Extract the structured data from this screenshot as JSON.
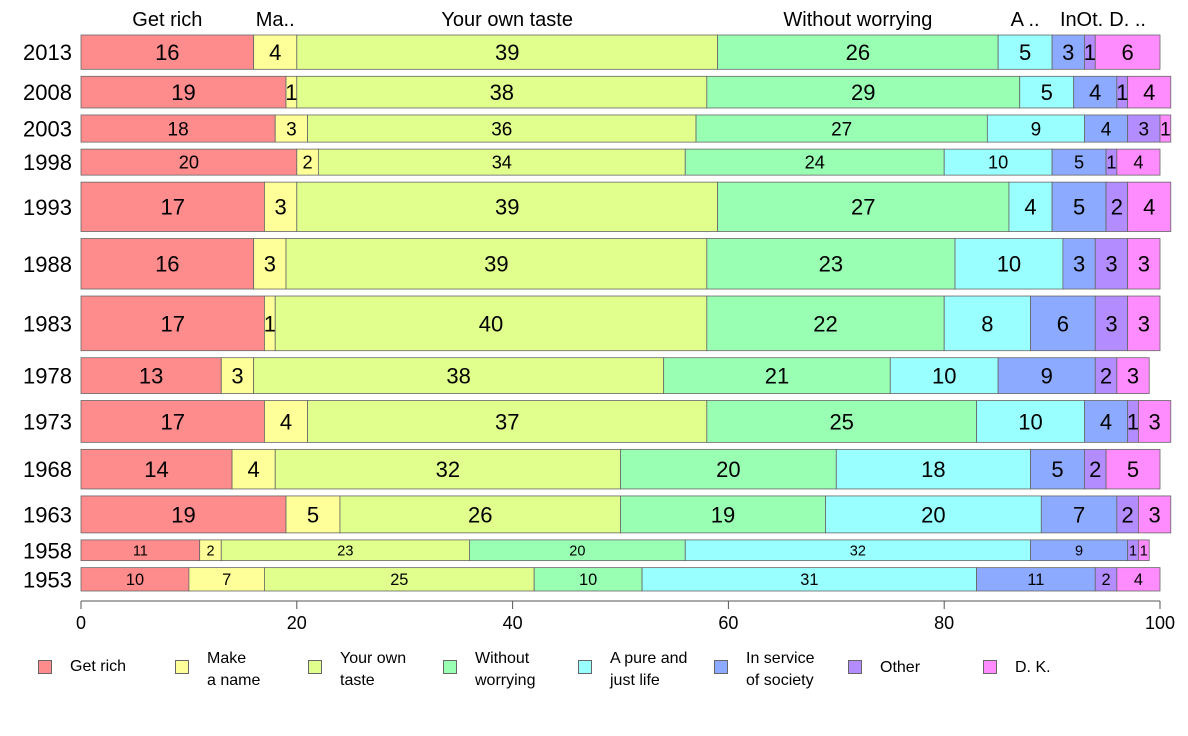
{
  "chart_data": {
    "type": "bar",
    "orientation": "horizontal",
    "stacked": true,
    "xlim": [
      0,
      100
    ],
    "x_ticks": [
      "0",
      "20",
      "40",
      "60",
      "80",
      "100"
    ],
    "grid": false,
    "legend_position": "bottom",
    "categories": [
      "2013",
      "2008",
      "2003",
      "1998",
      "1993",
      "1988",
      "1983",
      "1978",
      "1973",
      "1968",
      "1963",
      "1958",
      "1953"
    ],
    "bar_weights": [
      0.91,
      0.84,
      0.72,
      0.69,
      1.31,
      1.34,
      1.45,
      0.95,
      1.11,
      1.05,
      0.98,
      0.55,
      0.62
    ],
    "top_labels": [
      "Get rich",
      "Ma..",
      "Your own taste",
      "Without worrying",
      "A ..",
      "In",
      "Ot.",
      "D. .."
    ],
    "series": [
      {
        "name": "Get rich",
        "color": "#ff8c8c",
        "values": [
          16,
          19,
          18,
          20,
          17,
          16,
          17,
          13,
          17,
          14,
          19,
          11,
          10
        ]
      },
      {
        "name": "Make\na name",
        "color": "#ffff99",
        "values": [
          4,
          1,
          3,
          2,
          3,
          3,
          1,
          3,
          4,
          4,
          5,
          2,
          7
        ]
      },
      {
        "name": "Your own\ntaste",
        "color": "#e0ff8c",
        "values": [
          39,
          38,
          36,
          34,
          39,
          39,
          40,
          38,
          37,
          32,
          26,
          23,
          25
        ]
      },
      {
        "name": "Without\nworrying",
        "color": "#99ffb3",
        "values": [
          26,
          29,
          27,
          24,
          27,
          23,
          22,
          21,
          25,
          20,
          19,
          20,
          10
        ]
      },
      {
        "name": "A pure and\njust life",
        "color": "#99ffff",
        "values": [
          5,
          5,
          9,
          10,
          4,
          10,
          8,
          10,
          10,
          18,
          20,
          32,
          31
        ]
      },
      {
        "name": "In service\nof society",
        "color": "#8caaff",
        "values": [
          3,
          4,
          4,
          5,
          5,
          3,
          6,
          9,
          4,
          5,
          7,
          9,
          11
        ]
      },
      {
        "name": "Other",
        "color": "#b38cff",
        "values": [
          1,
          1,
          3,
          1,
          2,
          3,
          3,
          2,
          1,
          2,
          2,
          1,
          2
        ]
      },
      {
        "name": "D. K.",
        "color": "#ff8cff",
        "values": [
          6,
          4,
          1,
          4,
          4,
          3,
          3,
          3,
          3,
          5,
          3,
          1,
          4
        ]
      }
    ]
  }
}
